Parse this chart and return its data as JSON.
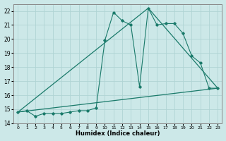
{
  "xlabel": "Humidex (Indice chaleur)",
  "bg_color": "#cce8e8",
  "grid_color": "#b0d4d4",
  "line_color": "#1a7a6a",
  "xlim": [
    -0.5,
    23.5
  ],
  "ylim": [
    14,
    22.5
  ],
  "yticks": [
    14,
    15,
    16,
    17,
    18,
    19,
    20,
    21,
    22
  ],
  "xticks": [
    0,
    1,
    2,
    3,
    4,
    5,
    6,
    7,
    8,
    9,
    10,
    11,
    12,
    13,
    14,
    15,
    16,
    17,
    18,
    19,
    20,
    21,
    22,
    23
  ],
  "curve1_x": [
    0,
    1,
    2,
    3,
    4,
    5,
    6,
    7,
    8,
    9,
    10,
    11,
    12,
    13,
    14,
    15,
    16,
    17,
    18,
    19,
    20,
    21,
    22,
    23
  ],
  "curve1_y": [
    14.8,
    14.9,
    14.5,
    14.7,
    14.7,
    14.7,
    14.8,
    14.9,
    14.9,
    15.1,
    19.9,
    21.9,
    21.3,
    21.0,
    16.6,
    22.2,
    21.0,
    21.1,
    21.1,
    20.4,
    18.8,
    18.3,
    16.5,
    16.5
  ],
  "curve2_x": [
    0,
    23
  ],
  "curve2_y": [
    14.8,
    16.5
  ],
  "curve3_x": [
    0,
    15,
    23
  ],
  "curve3_y": [
    14.8,
    22.2,
    16.5
  ]
}
